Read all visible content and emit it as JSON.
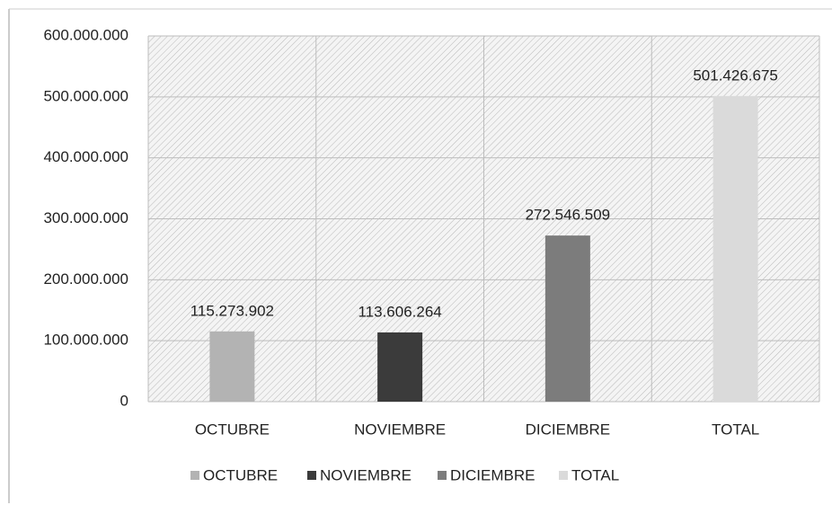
{
  "chart_data": {
    "type": "bar",
    "categories": [
      "OCTUBRE",
      "NOVIEMBRE",
      "DICIEMBRE",
      "TOTAL"
    ],
    "values": [
      115273902,
      113606264,
      272546509,
      501426675
    ],
    "value_labels": [
      "115.273.902",
      "113.606.264",
      "272.546.509",
      "501.426.675"
    ],
    "colors": [
      "#b3b3b3",
      "#3b3b3b",
      "#7c7c7c",
      "#dadada"
    ],
    "ylim": [
      0,
      600000000
    ],
    "yticks": [
      0,
      {
        "value": 100000000,
        "label": "100.000.000"
      },
      {
        "value": 200000000,
        "label": "200.000.000"
      },
      {
        "value": 300000000,
        "label": "300.000.000"
      },
      {
        "value": 400000000,
        "label": "400.000.000"
      },
      {
        "value": 500000000,
        "label": "500.000.000"
      },
      {
        "value": 600000000,
        "label": "600.000.000"
      }
    ],
    "grid": true,
    "legend": "bottom"
  }
}
